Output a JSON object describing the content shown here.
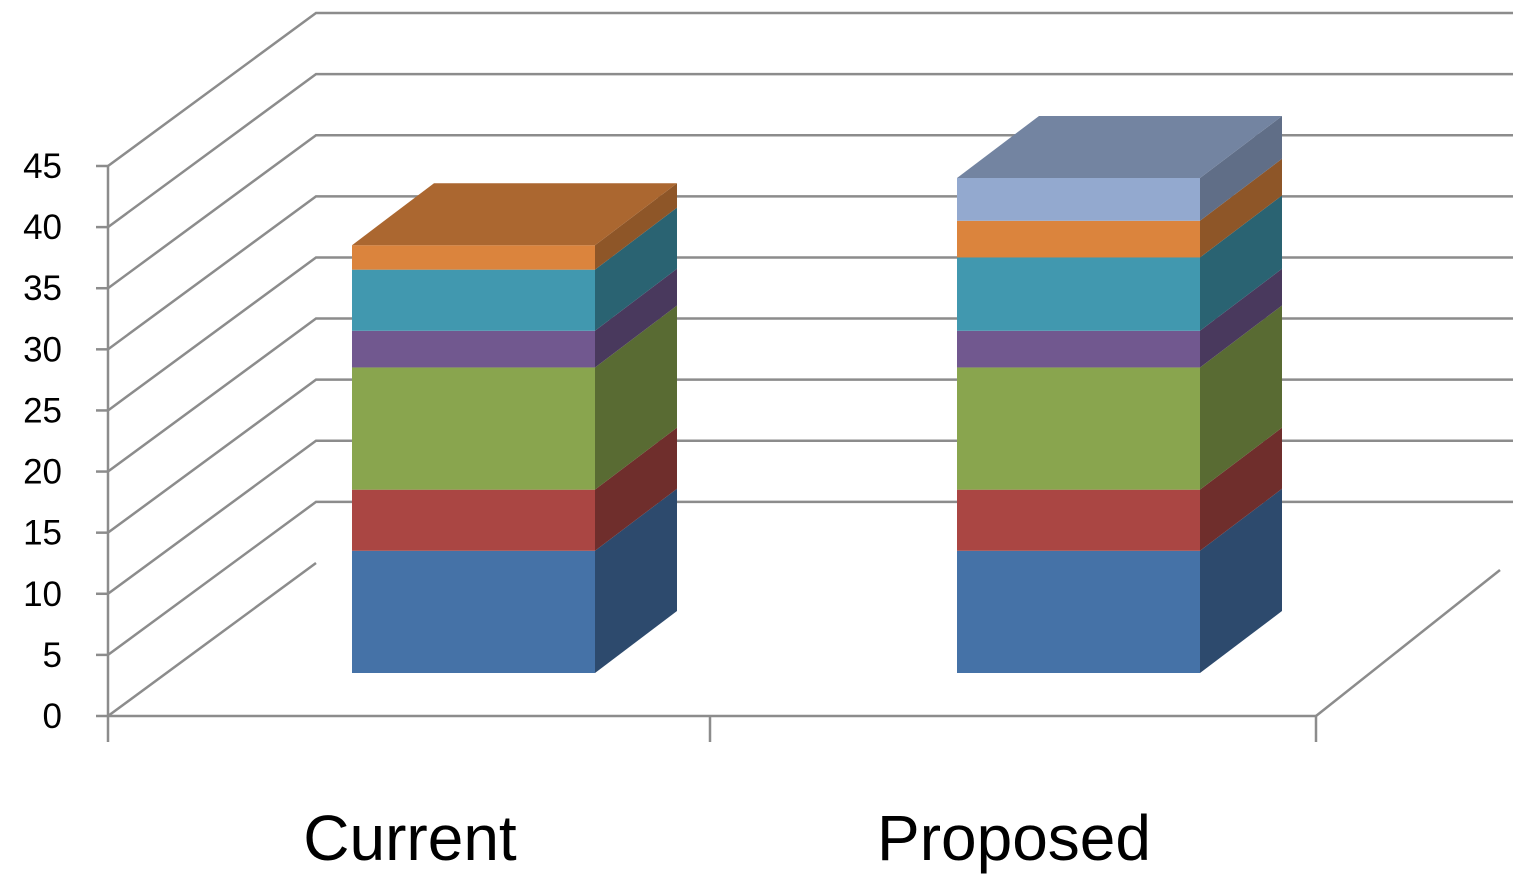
{
  "chart_data": {
    "type": "bar",
    "stacked": true,
    "three_d": true,
    "categories": [
      "Current",
      "Proposed"
    ],
    "series": [
      {
        "values": [
          10,
          10
        ],
        "color": "#4572a7"
      },
      {
        "values": [
          5,
          5
        ],
        "color": "#aa4643"
      },
      {
        "values": [
          10,
          10
        ],
        "color": "#89a54e"
      },
      {
        "values": [
          3,
          3
        ],
        "color": "#71588f"
      },
      {
        "values": [
          5,
          6
        ],
        "color": "#4198af"
      },
      {
        "values": [
          2,
          3
        ],
        "color": "#db843d"
      },
      {
        "values": [
          0,
          3.5
        ],
        "color": "#93a9cf"
      }
    ],
    "ylim": [
      0,
      45
    ],
    "yticks": [
      0,
      5,
      10,
      15,
      20,
      25,
      30,
      35,
      40,
      45
    ],
    "ytick_labels": [
      "0",
      "5",
      "10",
      "15",
      "20",
      "25",
      "30",
      "35",
      "40",
      "45"
    ],
    "grid": true,
    "legend": "none",
    "title": "",
    "xlabel": "",
    "ylabel": ""
  }
}
